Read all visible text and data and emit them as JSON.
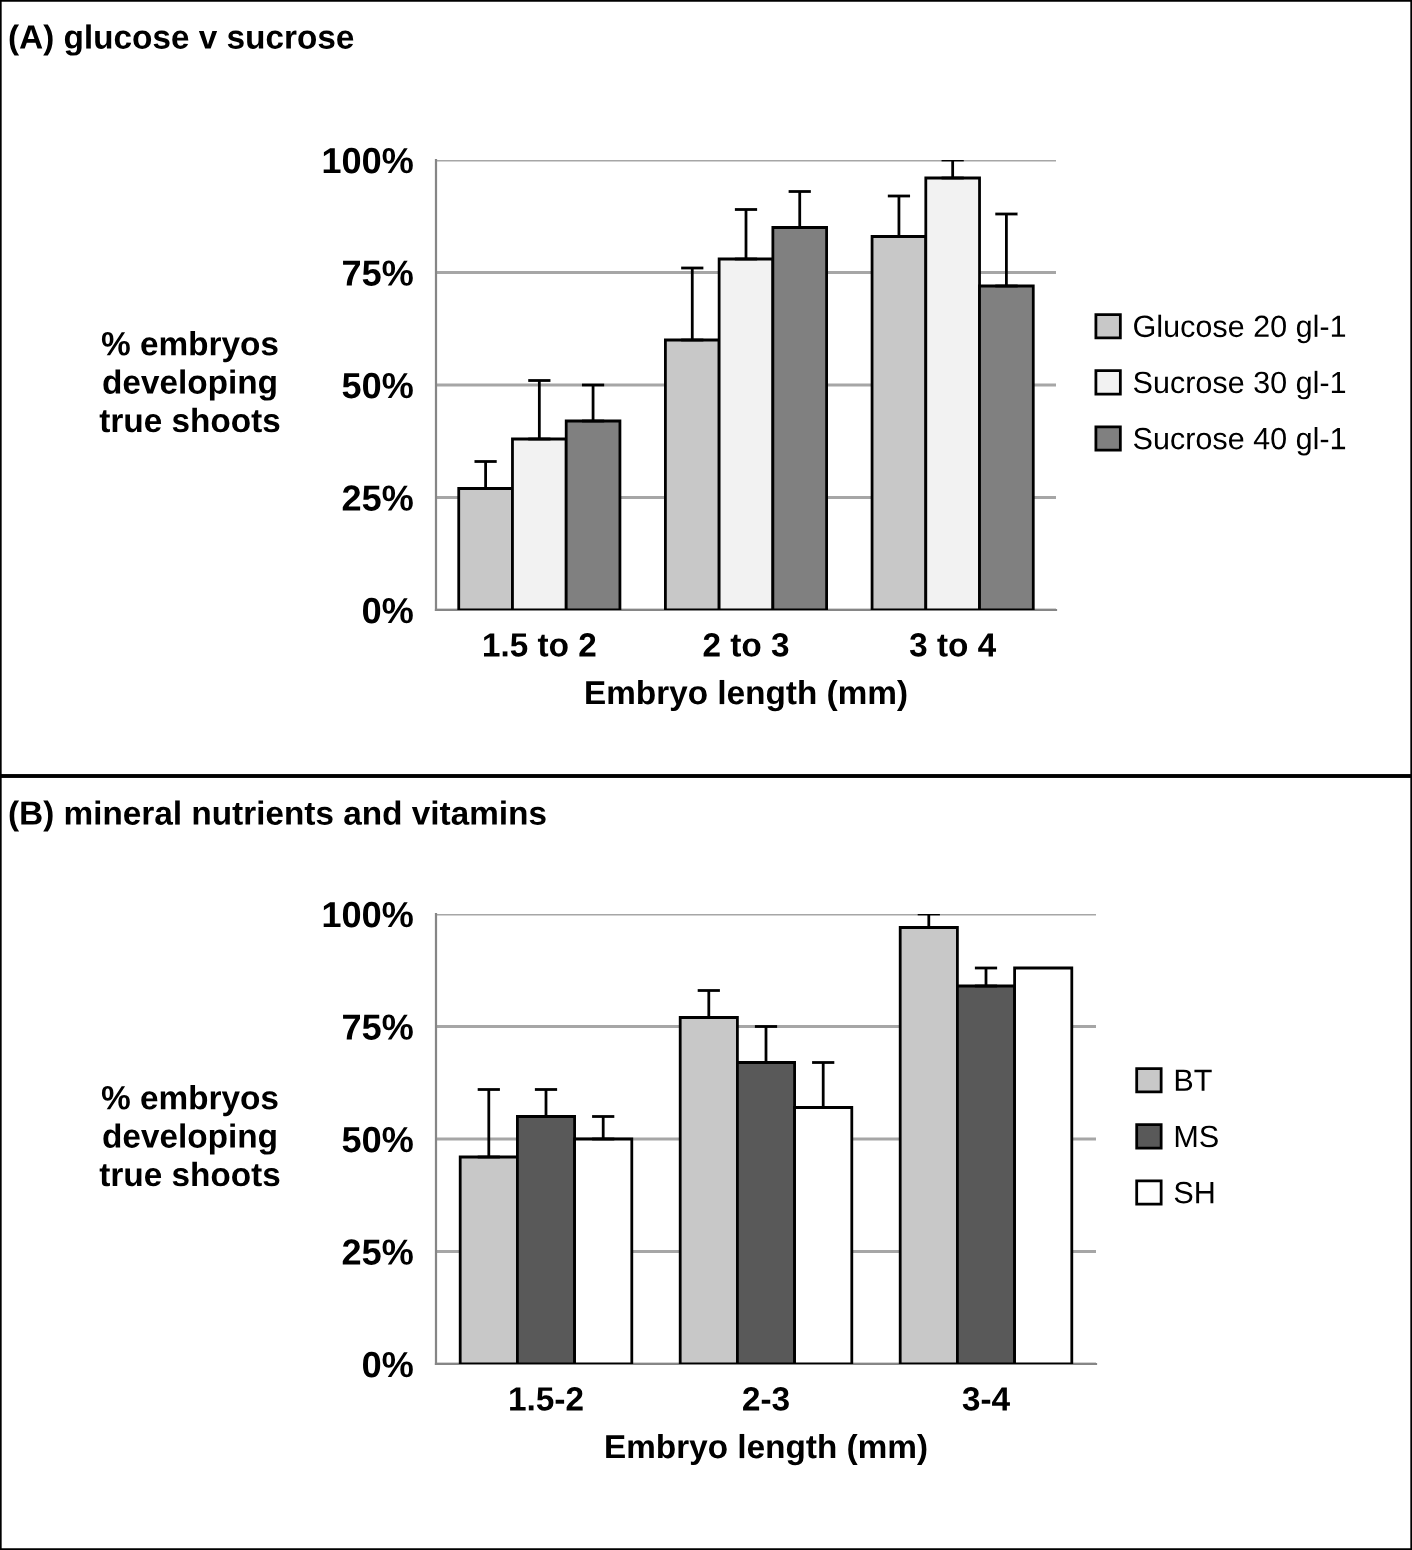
{
  "chart_data": [
    {
      "type": "bar",
      "title": "(A) glucose v sucrose",
      "xlabel": "Embryo length (mm)",
      "ylabel": "% embryos\ndeveloping\ntrue shoots",
      "categories": [
        "1.5 to 2",
        "2 to 3",
        "3 to 4"
      ],
      "series": [
        {
          "name": "Glucose 20 gl-1",
          "color": "#c8c8c8",
          "values": [
            27,
            60,
            83
          ],
          "errors": [
            [
              27,
              33
            ],
            [
              60,
              76
            ],
            [
              83,
              92
            ]
          ]
        },
        {
          "name": "Sucrose 30 gl-1",
          "color": "#f2f2f2",
          "values": [
            38,
            78,
            96
          ],
          "errors": [
            [
              38,
              51
            ],
            [
              78,
              89
            ],
            [
              96,
              100
            ]
          ]
        },
        {
          "name": "Sucrose 40 gl-1",
          "color": "#808080",
          "values": [
            42,
            85,
            72
          ],
          "errors": [
            [
              42,
              50
            ],
            [
              85,
              93
            ],
            [
              72,
              88
            ]
          ]
        }
      ],
      "ylim": [
        0,
        100
      ],
      "yticks": [
        {
          "value": 0,
          "label": "0%"
        },
        {
          "value": 25,
          "label": "25%"
        },
        {
          "value": 50,
          "label": "50%"
        },
        {
          "value": 75,
          "label": "75%"
        },
        {
          "value": 100,
          "label": "100%"
        }
      ],
      "grid": "y",
      "legend": "right"
    },
    {
      "type": "bar",
      "title": "(B) mineral nutrients and vitamins",
      "xlabel": "Embryo length (mm)",
      "ylabel": "% embryos\ndeveloping\ntrue shoots",
      "categories": [
        "1.5-2",
        "2-3",
        "3-4"
      ],
      "series": [
        {
          "name": "BT",
          "color": "#c8c8c8",
          "values": [
            46,
            77,
            97
          ],
          "errors": [
            [
              46,
              61
            ],
            [
              77,
              83
            ],
            [
              97,
              100
            ]
          ]
        },
        {
          "name": "MS",
          "color": "#595959",
          "values": [
            55,
            67,
            84
          ],
          "errors": [
            [
              55,
              61
            ],
            [
              67,
              75
            ],
            [
              84,
              88
            ]
          ]
        },
        {
          "name": "SH",
          "color": "#ffffff",
          "values": [
            50,
            57,
            88
          ],
          "errors": [
            [
              50,
              55
            ],
            [
              57,
              67
            ],
            null
          ]
        }
      ],
      "ylim": [
        0,
        100
      ],
      "yticks": [
        {
          "value": 0,
          "label": "0%"
        },
        {
          "value": 25,
          "label": "25%"
        },
        {
          "value": 50,
          "label": "50%"
        },
        {
          "value": 75,
          "label": "75%"
        },
        {
          "value": 100,
          "label": "100%"
        }
      ],
      "grid": "y",
      "legend": "right"
    }
  ]
}
